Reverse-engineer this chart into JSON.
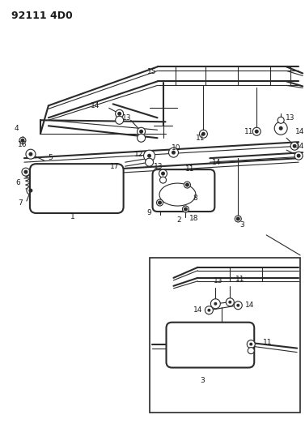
{
  "title": "92111 4D0",
  "bg_color": "#ffffff",
  "line_color": "#2a2a2a",
  "text_color": "#1a1a1a",
  "fig_width": 3.77,
  "fig_height": 5.33,
  "dpi": 100,
  "title_fontsize": 9.0,
  "label_fontsize": 6.5
}
